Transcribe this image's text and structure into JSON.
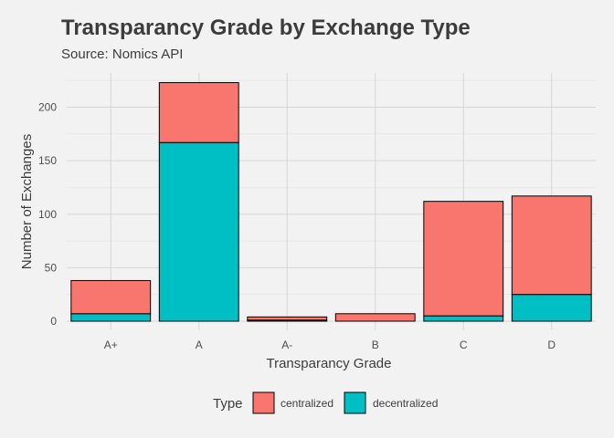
{
  "chart_data": {
    "type": "bar",
    "stacked": true,
    "title": "Transparancy Grade by Exchange Type",
    "subtitle": "Source: Nomics API",
    "xlabel": "Transparancy Grade",
    "ylabel": "Number of Exchanges",
    "categories": [
      "A+",
      "A",
      "A-",
      "B",
      "C",
      "D"
    ],
    "series": [
      {
        "name": "centralized",
        "color": "#f8766d",
        "values": [
          31,
          56,
          3,
          7,
          107,
          92
        ]
      },
      {
        "name": "decentralized",
        "color": "#00bfc4",
        "values": [
          7,
          167,
          1,
          0,
          5,
          25
        ]
      }
    ],
    "ylim": [
      0,
      232
    ],
    "yticks": [
      0,
      50,
      100,
      150,
      200
    ],
    "grid": true,
    "legend": {
      "title": "Type",
      "position": "bottom"
    }
  }
}
